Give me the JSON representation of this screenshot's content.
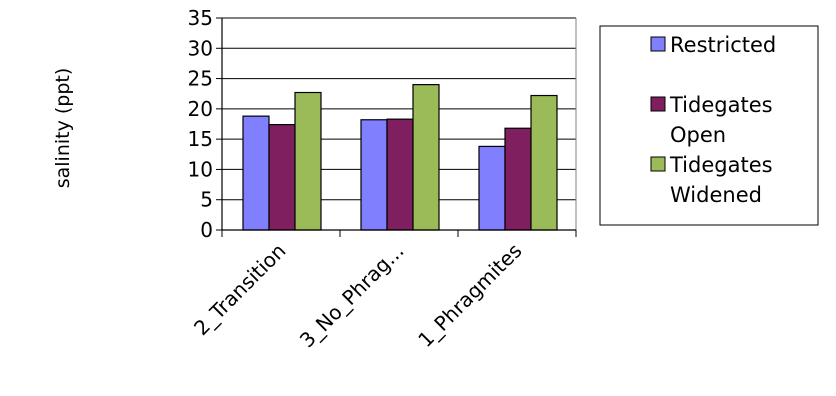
{
  "chart_data": {
    "type": "bar",
    "ylabel": "salinity (ppt)",
    "xlabel": "",
    "ylim": [
      0,
      35
    ],
    "yticks": [
      0,
      5,
      10,
      15,
      20,
      25,
      30,
      35
    ],
    "grid": "horizontal",
    "legend_position": "right",
    "categories": [
      "2_Transition",
      "3_No_Phrag...",
      "1_Phragmites"
    ],
    "series": [
      {
        "name": "Restricted",
        "color": "#8080ff",
        "values": [
          18.8,
          18.2,
          13.8
        ]
      },
      {
        "name": "Tidegates Open",
        "color": "#7f1f5f",
        "values": [
          17.4,
          18.3,
          16.8
        ]
      },
      {
        "name": "Tidegates Widened",
        "color": "#9bbb59",
        "values": [
          22.7,
          24.0,
          22.2
        ]
      }
    ],
    "legend": {
      "entries": [
        {
          "lines": [
            "Restricted"
          ]
        },
        {
          "lines": [
            "Tidegates",
            "Open"
          ]
        },
        {
          "lines": [
            "Tidegates",
            "Widened"
          ]
        }
      ]
    }
  }
}
